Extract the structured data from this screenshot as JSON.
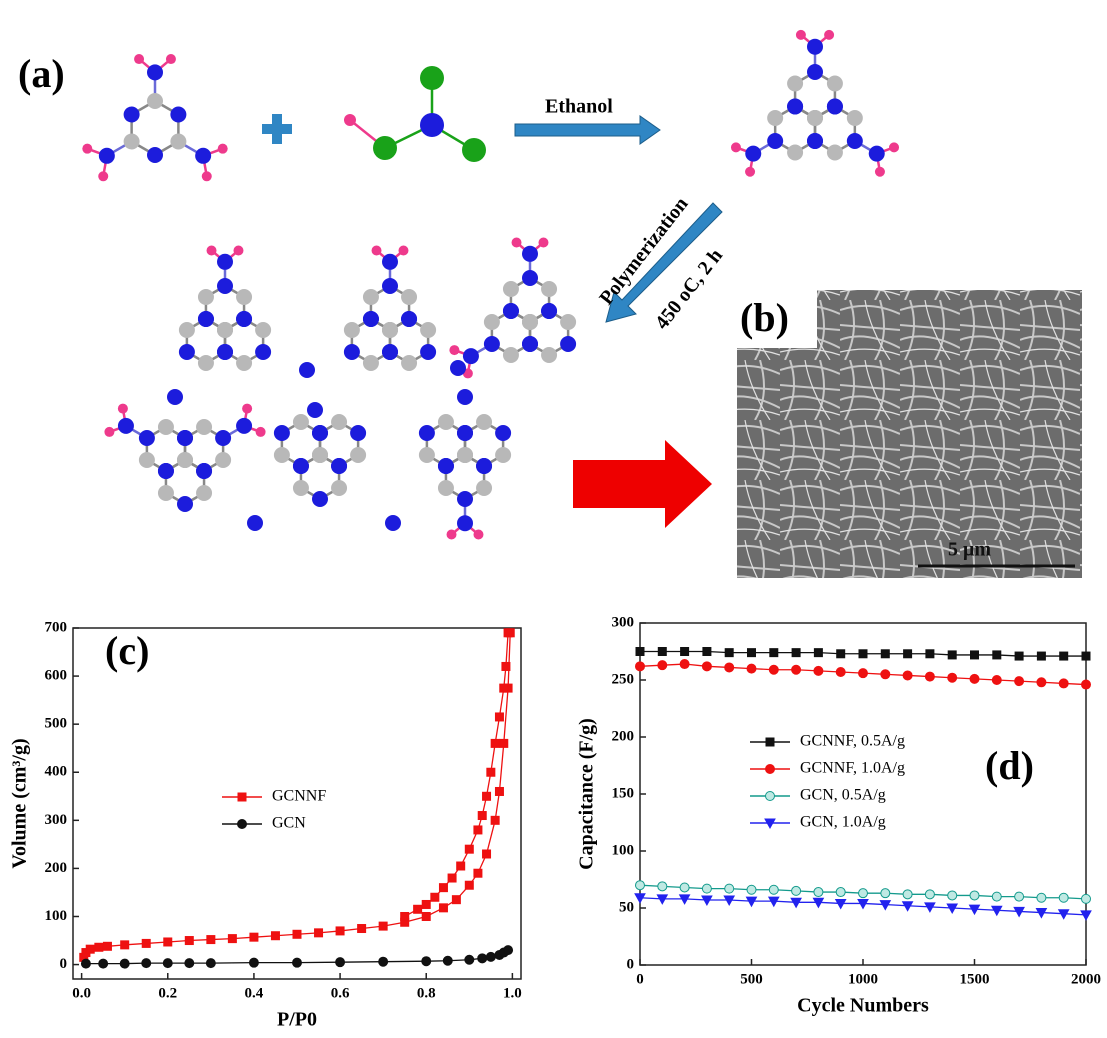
{
  "diagram": {
    "label_a": "(a)",
    "label_b": "(b)",
    "reagent": "Ethanol",
    "step": "Polymerization",
    "conditions": "450 oC, 2 h",
    "scale_bar": "5 μm"
  },
  "chart_data": [
    {
      "type": "line",
      "panel": "(c)",
      "x_label": "P/P0",
      "y_label": "Volume (cm³/g)",
      "xlim": [
        -0.02,
        1.02
      ],
      "ylim": [
        -30,
        700
      ],
      "xticks": [
        {
          "value": 0,
          "label": "0.0"
        },
        0.2,
        0.4,
        0.6,
        0.8,
        {
          "value": 1,
          "label": "1.0"
        }
      ],
      "yticks": [
        0,
        100,
        200,
        300,
        400,
        500,
        600,
        700
      ],
      "legend": "center-left",
      "series": [
        {
          "name": "GCNNF",
          "color": "#ee1111",
          "marker": "square",
          "x": [
            0.005,
            0.01,
            0.02,
            0.04,
            0.06,
            0.1,
            0.15,
            0.2,
            0.25,
            0.3,
            0.35,
            0.4,
            0.45,
            0.5,
            0.55,
            0.6,
            0.65,
            0.7,
            0.75,
            0.8,
            0.84,
            0.87,
            0.9,
            0.92,
            0.94,
            0.96,
            0.97,
            0.98,
            0.99,
            0.995,
            0.99,
            0.985,
            0.98,
            0.97,
            0.96,
            0.95,
            0.94,
            0.93,
            0.92,
            0.9,
            0.88,
            0.86,
            0.84,
            0.82,
            0.8,
            0.78,
            0.75
          ],
          "values": [
            15,
            25,
            32,
            36,
            38,
            41,
            44,
            47,
            50,
            52,
            54,
            57,
            60,
            63,
            66,
            70,
            75,
            80,
            88,
            100,
            118,
            135,
            165,
            190,
            230,
            300,
            360,
            460,
            575,
            690,
            690,
            620,
            575,
            515,
            460,
            400,
            350,
            310,
            280,
            240,
            205,
            180,
            160,
            140,
            125,
            115,
            100
          ]
        },
        {
          "name": "GCN",
          "color": "#111111",
          "marker": "circle",
          "x": [
            0.01,
            0.05,
            0.1,
            0.15,
            0.2,
            0.25,
            0.3,
            0.4,
            0.5,
            0.6,
            0.7,
            0.8,
            0.85,
            0.9,
            0.93,
            0.95,
            0.97,
            0.98,
            0.99
          ],
          "values": [
            2,
            2,
            2,
            3,
            3,
            3,
            3,
            4,
            4,
            5,
            6,
            7,
            8,
            10,
            13,
            16,
            20,
            25,
            30
          ]
        }
      ]
    },
    {
      "type": "line",
      "panel": "(d)",
      "x_label": "Cycle Numbers",
      "y_label": "Capacitance (F/g)",
      "xlim": [
        0,
        2000
      ],
      "ylim": [
        0,
        300
      ],
      "xticks": [
        0,
        500,
        1000,
        1500,
        2000
      ],
      "yticks": [
        0,
        50,
        100,
        150,
        200,
        250,
        300
      ],
      "legend": "center-left",
      "series": [
        {
          "name": "GCNNF, 0.5A/g",
          "color": "#111111",
          "marker": "square",
          "x": [
            0,
            100,
            200,
            300,
            400,
            500,
            600,
            700,
            800,
            900,
            1000,
            1100,
            1200,
            1300,
            1400,
            1500,
            1600,
            1700,
            1800,
            1900,
            2000
          ],
          "values": [
            275,
            275,
            275,
            275,
            274,
            274,
            274,
            274,
            274,
            273,
            273,
            273,
            273,
            273,
            272,
            272,
            272,
            271,
            271,
            271,
            271
          ]
        },
        {
          "name": "GCNNF, 1.0A/g",
          "color": "#ee1111",
          "marker": "circle",
          "x": [
            0,
            100,
            200,
            300,
            400,
            500,
            600,
            700,
            800,
            900,
            1000,
            1100,
            1200,
            1300,
            1400,
            1500,
            1600,
            1700,
            1800,
            1900,
            2000
          ],
          "values": [
            262,
            263,
            264,
            262,
            261,
            260,
            259,
            259,
            258,
            257,
            256,
            255,
            254,
            253,
            252,
            251,
            250,
            249,
            248,
            247,
            246
          ]
        },
        {
          "name": "GCN, 0.5A/g",
          "color": "#139a8c",
          "marker": "circle",
          "x": [
            0,
            100,
            200,
            300,
            400,
            500,
            600,
            700,
            800,
            900,
            1000,
            1100,
            1200,
            1300,
            1400,
            1500,
            1600,
            1700,
            1800,
            1900,
            2000
          ],
          "values": [
            70,
            69,
            68,
            67,
            67,
            66,
            66,
            65,
            64,
            64,
            63,
            63,
            62,
            62,
            61,
            61,
            60,
            60,
            59,
            59,
            58
          ]
        },
        {
          "name": "GCN, 1.0A/g",
          "color": "#2222ee",
          "marker": "triangle",
          "x": [
            0,
            100,
            200,
            300,
            400,
            500,
            600,
            700,
            800,
            900,
            1000,
            1100,
            1200,
            1300,
            1400,
            1500,
            1600,
            1700,
            1800,
            1900,
            2000
          ],
          "values": [
            59,
            58,
            58,
            57,
            57,
            56,
            56,
            55,
            55,
            54,
            54,
            53,
            52,
            51,
            50,
            49,
            48,
            47,
            46,
            45,
            44
          ]
        }
      ]
    }
  ]
}
